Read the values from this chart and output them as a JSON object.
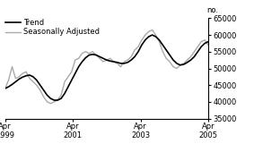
{
  "title": "",
  "ylabel": "no.",
  "ylim": [
    35000,
    65000
  ],
  "yticks": [
    35000,
    40000,
    45000,
    50000,
    55000,
    60000,
    65000
  ],
  "xtick_labels": [
    "Apr\n1999",
    "Apr\n2001",
    "Apr\n2003",
    "Apr\n2005"
  ],
  "trend_color": "#000000",
  "seasonally_color": "#aaaaaa",
  "trend_linewidth": 1.2,
  "seasonally_linewidth": 1.0,
  "legend_labels": [
    "Trend",
    "Seasonally Adjusted"
  ],
  "background_color": "#ffffff",
  "trend_data": [
    44000,
    44500,
    45200,
    46000,
    46800,
    47400,
    47800,
    48000,
    47500,
    46500,
    45000,
    43500,
    42000,
    41000,
    40500,
    40500,
    41000,
    42500,
    44500,
    46500,
    48500,
    50500,
    52000,
    53200,
    54000,
    54200,
    54000,
    53500,
    53000,
    52500,
    52200,
    52000,
    51800,
    51500,
    51500,
    51800,
    52500,
    53500,
    55000,
    57000,
    58500,
    59500,
    60000,
    59500,
    58500,
    57000,
    55500,
    54000,
    52500,
    51500,
    51000,
    51200,
    51800,
    52500,
    53500,
    55000,
    56500,
    57500,
    58000
  ],
  "seasonally_data": [
    44000,
    46500,
    50500,
    47000,
    47500,
    48500,
    49000,
    47000,
    46000,
    45000,
    43500,
    41500,
    40000,
    39500,
    40000,
    40500,
    42000,
    46000,
    47500,
    49000,
    52500,
    53000,
    54500,
    55000,
    54500,
    55000,
    54000,
    53000,
    52000,
    52500,
    53000,
    52000,
    51500,
    50500,
    52000,
    52500,
    53500,
    55500,
    56500,
    58500,
    60000,
    61000,
    61500,
    60000,
    58000,
    55000,
    53000,
    52000,
    50500,
    50000,
    51000,
    51500,
    52500,
    53500,
    55000,
    56500,
    58000,
    58500,
    57000
  ]
}
